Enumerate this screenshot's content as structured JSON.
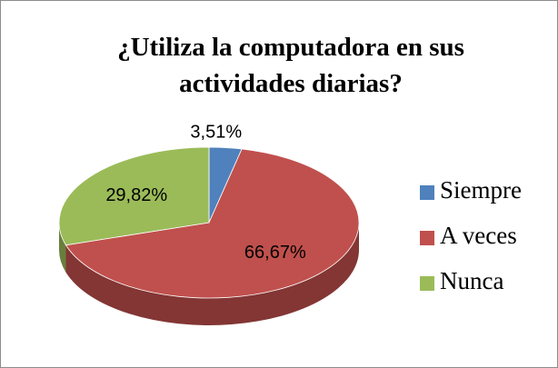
{
  "chart_data": {
    "type": "pie3d",
    "title": "¿Utiliza la computadora en sus actividades diarias?",
    "categories": [
      "Siempre",
      "A veces",
      "Nunca"
    ],
    "values": [
      3.51,
      66.67,
      29.82
    ],
    "value_labels": [
      "3,51%",
      "66,67%",
      "29,82%"
    ],
    "colors": [
      "#4f81bd",
      "#c0504d",
      "#9bbb59"
    ],
    "legend": "right"
  }
}
